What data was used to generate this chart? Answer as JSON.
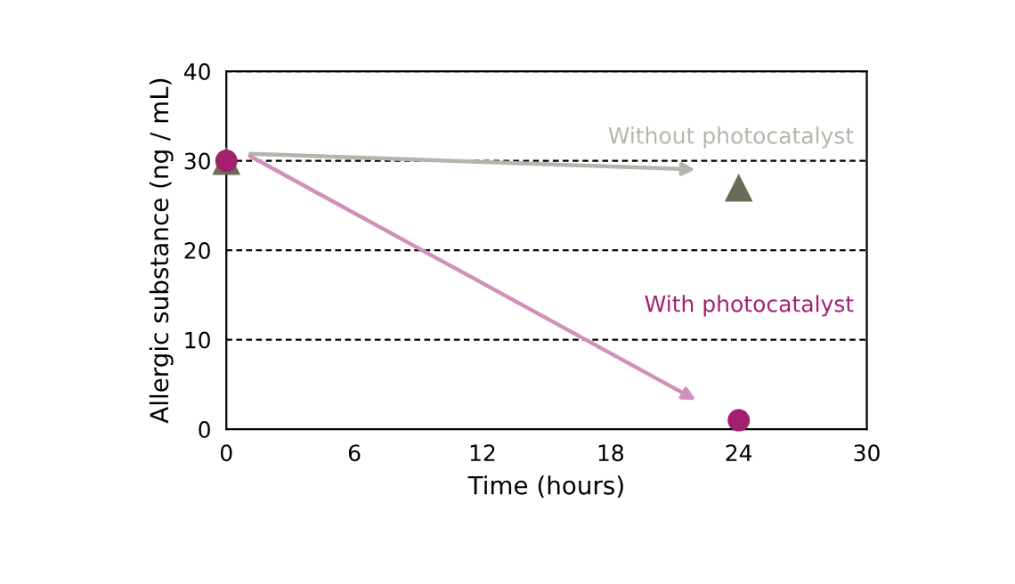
{
  "chart_data": {
    "type": "scatter",
    "xlabel": "Time (hours)",
    "ylabel": "Allergic substance (ng / mL)",
    "x": [
      0,
      24
    ],
    "xlim": [
      0,
      30
    ],
    "xticks": [
      0,
      6,
      12,
      18,
      24,
      30
    ],
    "ylim": [
      0,
      40
    ],
    "yticks": [
      0,
      10,
      20,
      30,
      40
    ],
    "grid": "y",
    "series": [
      {
        "name": "Without photocatalyst",
        "color": "#6b6b5a",
        "marker": "triangle",
        "values": [
          30,
          27
        ]
      },
      {
        "name": "With photocatalyst",
        "color": "#a3206f",
        "marker": "circle",
        "values": [
          30,
          1
        ]
      }
    ]
  }
}
